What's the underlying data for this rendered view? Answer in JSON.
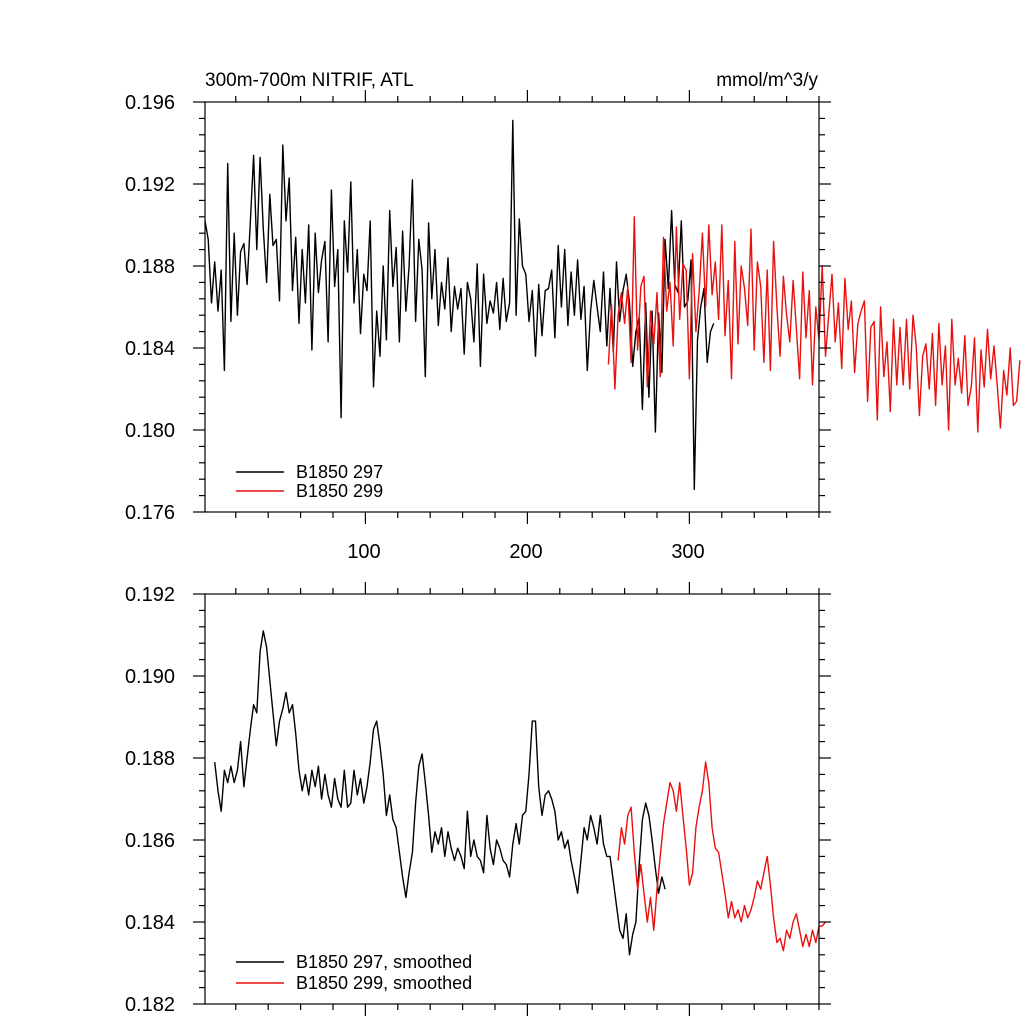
{
  "colors": {
    "series_297": "#000000",
    "series_299": "#e8110f"
  },
  "chart_data": [
    {
      "type": "line",
      "title_left": "300m-700m NITRIF, ATL",
      "title_right": "mmol/m^3/y",
      "xlabel": "",
      "ylabel": "",
      "xlim": [
        1,
        380
      ],
      "ylim": [
        0.176,
        0.196
      ],
      "y_ticks": [
        "0.196",
        "0.192",
        "0.188",
        "0.184",
        "0.180",
        "0.176"
      ],
      "x_ticks": [
        "100",
        "200",
        "300"
      ],
      "legend_position": "bottom-left",
      "series": [
        {
          "name": "B1850 297",
          "color": "#000000",
          "x_start": 1,
          "x_step": 2,
          "values": [
            0.1902,
            0.1893,
            0.1862,
            0.1882,
            0.1858,
            0.1878,
            0.1829,
            0.193,
            0.1853,
            0.1896,
            0.1856,
            0.1887,
            0.1891,
            0.1871,
            0.1902,
            0.1934,
            0.1888,
            0.1933,
            0.1898,
            0.1872,
            0.1915,
            0.189,
            0.1893,
            0.1863,
            0.1939,
            0.1902,
            0.1923,
            0.1868,
            0.1894,
            0.1852,
            0.1888,
            0.1862,
            0.19,
            0.1839,
            0.1896,
            0.1867,
            0.1883,
            0.1892,
            0.1843,
            0.1917,
            0.187,
            0.1888,
            0.1806,
            0.1902,
            0.1877,
            0.1921,
            0.1862,
            0.1888,
            0.1847,
            0.1876,
            0.1868,
            0.1902,
            0.1821,
            0.1858,
            0.1836,
            0.188,
            0.1844,
            0.1907,
            0.187,
            0.1889,
            0.1843,
            0.1897,
            0.1858,
            0.188,
            0.1922,
            0.1853,
            0.1893,
            0.1878,
            0.1826,
            0.1901,
            0.1864,
            0.1888,
            0.1851,
            0.1872,
            0.1859,
            0.1884,
            0.1848,
            0.187,
            0.1859,
            0.1869,
            0.1837,
            0.1872,
            0.1864,
            0.1843,
            0.1881,
            0.1831,
            0.1876,
            0.1852,
            0.1863,
            0.1857,
            0.1872,
            0.1849,
            0.1874,
            0.1853,
            0.1862,
            0.1951,
            0.1856,
            0.1903,
            0.188,
            0.1876,
            0.1853,
            0.1868,
            0.1836,
            0.1871,
            0.1846,
            0.1868,
            0.1869,
            0.1878,
            0.1845,
            0.189,
            0.186,
            0.1888,
            0.1851,
            0.1877,
            0.1856,
            0.1883,
            0.1854,
            0.187,
            0.1829,
            0.1858,
            0.1873,
            0.186,
            0.1848,
            0.1877,
            0.1841,
            0.1869,
            0.1838,
            0.1882,
            0.1853,
            0.1868,
            0.1876,
            0.1862,
            0.1831,
            0.1848,
            0.1855,
            0.181,
            0.1862,
            0.1816,
            0.1858,
            0.1799,
            0.1857,
            0.1828,
            0.1893,
            0.1869,
            0.1907,
            0.1871,
            0.1867,
            0.1902,
            0.186,
            0.1863,
            0.1883,
            0.1771,
            0.1844,
            0.186,
            0.1869,
            0.1833,
            0.1848,
            0.1852
          ]
        },
        {
          "name": "B1850 299",
          "color": "#e8110f",
          "x_start": 250,
          "x_step": 2,
          "values": [
            0.1832,
            0.1861,
            0.182,
            0.1856,
            0.1867,
            0.1852,
            0.187,
            0.1833,
            0.1904,
            0.1839,
            0.187,
            0.1875,
            0.1821,
            0.1858,
            0.1842,
            0.1867,
            0.1826,
            0.1894,
            0.1858,
            0.1872,
            0.1841,
            0.1899,
            0.1854,
            0.1881,
            0.1878,
            0.1825,
            0.1886,
            0.1848,
            0.1867,
            0.1896,
            0.186,
            0.19,
            0.1866,
            0.1882,
            0.1854,
            0.19,
            0.1846,
            0.1873,
            0.1825,
            0.1892,
            0.1842,
            0.188,
            0.1869,
            0.1851,
            0.1898,
            0.1839,
            0.1882,
            0.187,
            0.1833,
            0.1878,
            0.1829,
            0.1892,
            0.186,
            0.1836,
            0.1875,
            0.1856,
            0.1843,
            0.1873,
            0.185,
            0.1825,
            0.1877,
            0.1845,
            0.1868,
            0.1822,
            0.186,
            0.1844,
            0.188,
            0.1836,
            0.1856,
            0.1876,
            0.1843,
            0.1862,
            0.183,
            0.1874,
            0.1849,
            0.1863,
            0.1828,
            0.1852,
            0.1858,
            0.1863,
            0.1814,
            0.185,
            0.1853,
            0.1805,
            0.186,
            0.1826,
            0.1843,
            0.1809,
            0.1854,
            0.1822,
            0.185,
            0.1822,
            0.1854,
            0.182,
            0.1856,
            0.1841,
            0.1807,
            0.1836,
            0.1842,
            0.182,
            0.1847,
            0.1812,
            0.1852,
            0.1822,
            0.1841,
            0.18,
            0.1854,
            0.1822,
            0.1835,
            0.1818,
            0.1846,
            0.1812,
            0.1821,
            0.1845,
            0.1799,
            0.1839,
            0.1821,
            0.1849,
            0.1825,
            0.1841,
            0.1822,
            0.1801,
            0.1829,
            0.1817,
            0.184,
            0.1812,
            0.1814,
            0.1834
          ]
        }
      ],
      "legend": [
        "B1850 297",
        "B1850 299"
      ]
    },
    {
      "type": "line",
      "xlabel": "",
      "ylabel": "",
      "xlim": [
        1,
        380
      ],
      "ylim": [
        0.182,
        0.192
      ],
      "y_ticks": [
        "0.192",
        "0.190",
        "0.188",
        "0.186",
        "0.184",
        "0.182"
      ],
      "legend_position": "bottom-left",
      "series": [
        {
          "name": "B1850 297, smoothed",
          "color": "#000000",
          "x_start": 7,
          "x_step": 2,
          "values": [
            0.1879,
            0.1872,
            0.1867,
            0.1877,
            0.1874,
            0.1878,
            0.1874,
            0.1877,
            0.1884,
            0.1873,
            0.188,
            0.1887,
            0.1893,
            0.1891,
            0.1906,
            0.1911,
            0.1907,
            0.1899,
            0.1891,
            0.1883,
            0.1889,
            0.1892,
            0.1896,
            0.1891,
            0.1893,
            0.1886,
            0.1877,
            0.1872,
            0.1876,
            0.1871,
            0.1877,
            0.1873,
            0.1878,
            0.187,
            0.1876,
            0.1871,
            0.1868,
            0.1875,
            0.187,
            0.1868,
            0.1877,
            0.1868,
            0.1869,
            0.1877,
            0.1871,
            0.1875,
            0.1869,
            0.1873,
            0.1879,
            0.1887,
            0.1889,
            0.1883,
            0.1876,
            0.1866,
            0.1871,
            0.1865,
            0.1863,
            0.1857,
            0.1851,
            0.1846,
            0.1852,
            0.1857,
            0.1869,
            0.1878,
            0.1881,
            0.1874,
            0.1866,
            0.1857,
            0.1862,
            0.1859,
            0.1863,
            0.1856,
            0.1862,
            0.1858,
            0.1855,
            0.1858,
            0.1856,
            0.1853,
            0.1867,
            0.1856,
            0.186,
            0.1856,
            0.1855,
            0.1852,
            0.1866,
            0.1858,
            0.1854,
            0.186,
            0.1858,
            0.1855,
            0.1854,
            0.1851,
            0.1859,
            0.1864,
            0.1859,
            0.1866,
            0.1867,
            0.1876,
            0.1889,
            0.1889,
            0.1873,
            0.1866,
            0.1871,
            0.1872,
            0.187,
            0.1867,
            0.186,
            0.1862,
            0.1858,
            0.186,
            0.1855,
            0.1851,
            0.1847,
            0.1855,
            0.1863,
            0.186,
            0.1866,
            0.1863,
            0.1859,
            0.1866,
            0.1859,
            0.1856,
            0.1856,
            0.185,
            0.1844,
            0.1838,
            0.1836,
            0.1842,
            0.1832,
            0.1837,
            0.184,
            0.1854,
            0.1865,
            0.1869,
            0.1866,
            0.186,
            0.1853,
            0.1847,
            0.1851,
            0.1848
          ]
        },
        {
          "name": "B1850 299, smoothed",
          "color": "#e8110f",
          "x_start": 256,
          "x_step": 2,
          "values": [
            0.1855,
            0.1863,
            0.1859,
            0.1866,
            0.1868,
            0.1857,
            0.1848,
            0.1854,
            0.1847,
            0.184,
            0.1846,
            0.1838,
            0.1848,
            0.1856,
            0.1864,
            0.1869,
            0.1874,
            0.1872,
            0.1867,
            0.1874,
            0.1866,
            0.1858,
            0.1849,
            0.1852,
            0.1863,
            0.1868,
            0.1872,
            0.1879,
            0.1874,
            0.1863,
            0.1858,
            0.1857,
            0.1852,
            0.1847,
            0.1841,
            0.1845,
            0.1841,
            0.1843,
            0.184,
            0.1844,
            0.1841,
            0.1843,
            0.1846,
            0.185,
            0.1848,
            0.1852,
            0.1856,
            0.1849,
            0.1841,
            0.1835,
            0.1836,
            0.1833,
            0.1838,
            0.1836,
            0.184,
            0.1842,
            0.1838,
            0.1834,
            0.1837,
            0.1834,
            0.1838,
            0.1835,
            0.1839,
            0.1839,
            0.184
          ]
        }
      ],
      "legend": [
        "B1850 297, smoothed",
        "B1850 299, smoothed"
      ]
    }
  ]
}
